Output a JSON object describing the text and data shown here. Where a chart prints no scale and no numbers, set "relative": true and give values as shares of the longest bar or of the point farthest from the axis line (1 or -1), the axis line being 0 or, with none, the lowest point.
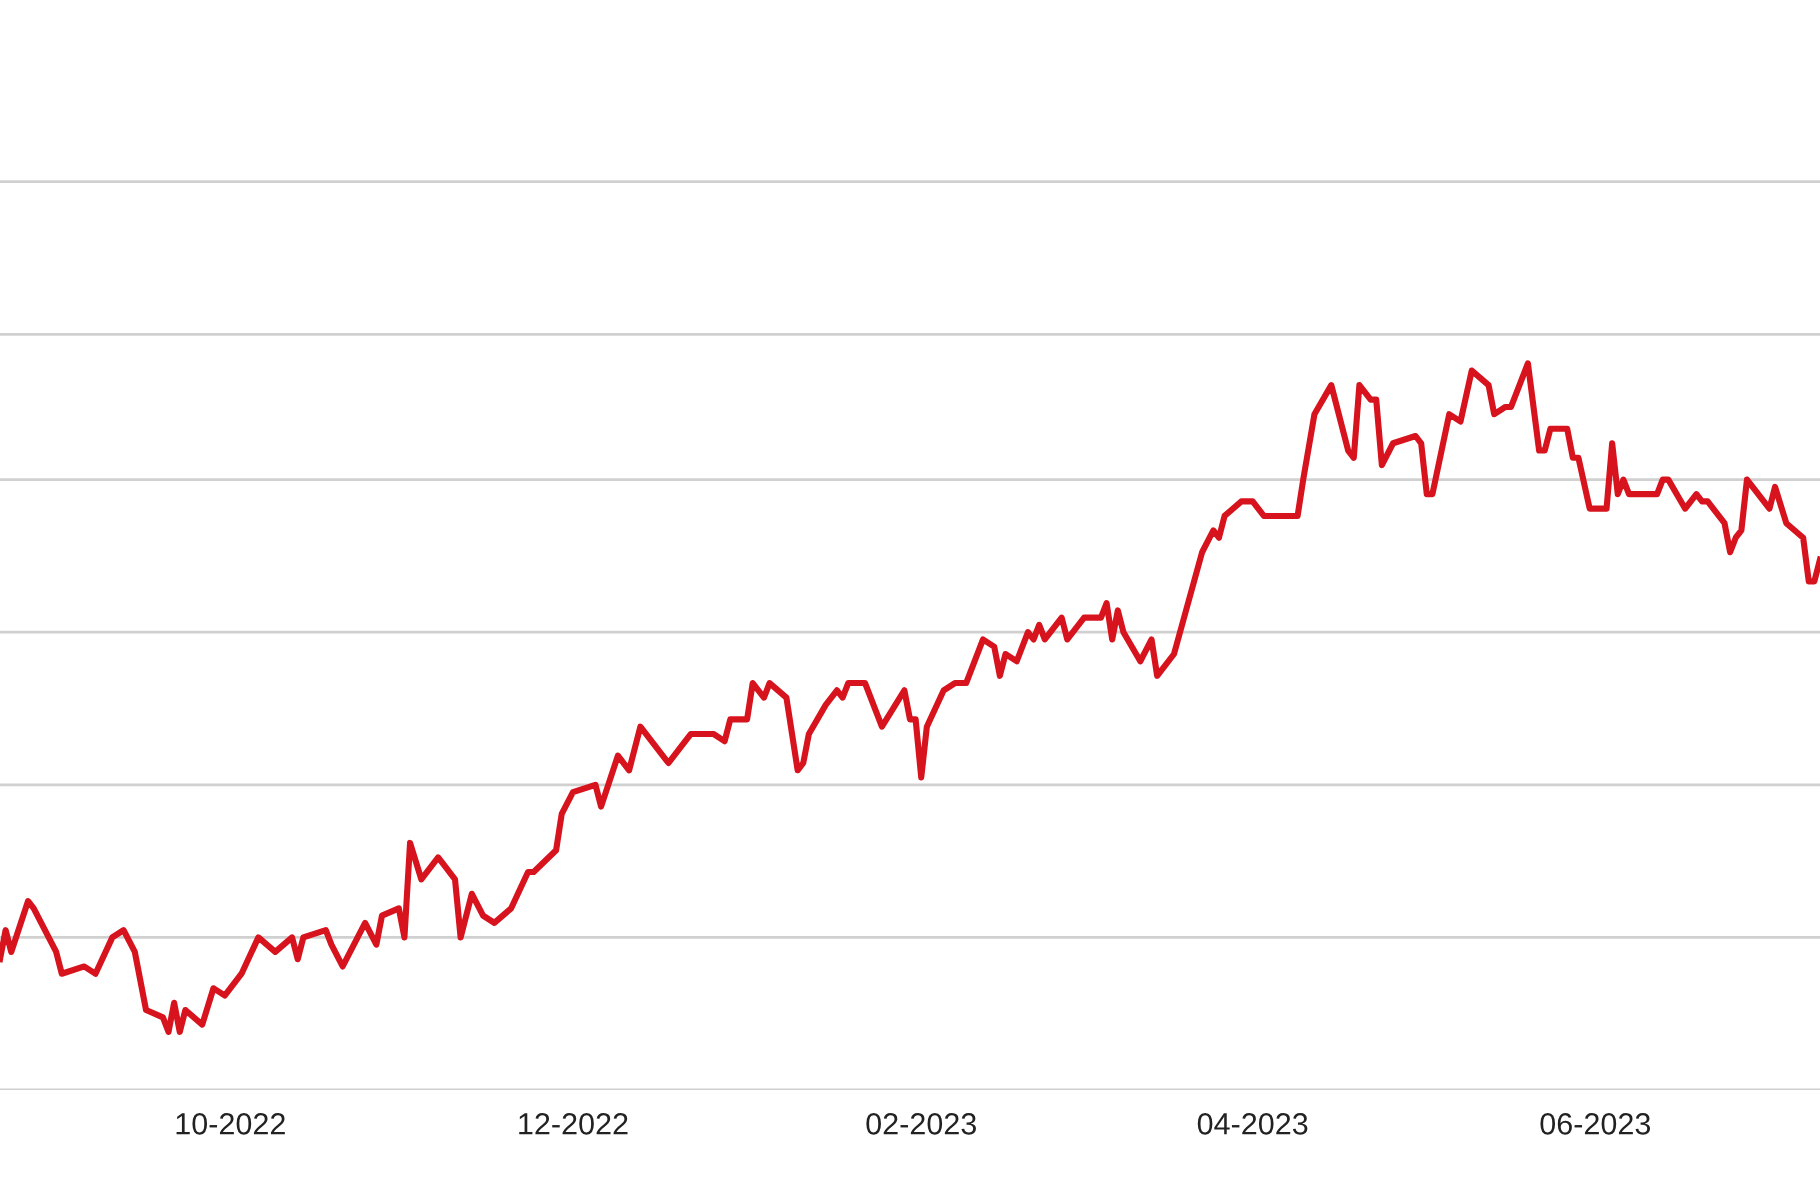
{
  "chart_data": {
    "type": "line",
    "relative": true,
    "legend": false,
    "marker": "none",
    "line_style": "solid",
    "ref_lines": [
      {
        "axis": "y",
        "value": 0,
        "color": "#d0d0d0"
      },
      {
        "axis": "y",
        "value": 0.21,
        "color": "#d0d0d0"
      },
      {
        "axis": "y",
        "value": 0.42,
        "color": "#d0d0d0"
      },
      {
        "axis": "y",
        "value": 0.63,
        "color": "#d0d0d0"
      },
      {
        "axis": "y",
        "value": 0.84,
        "color": "#d0d0d0"
      },
      {
        "axis": "y",
        "value": 1.04,
        "color": "#d0d0d0"
      },
      {
        "axis": "y",
        "value": 1.25,
        "color": "#d0d0d0"
      }
    ],
    "xlim": [
      "2022-08-21",
      "2023-07-11"
    ],
    "xticks": [
      {
        "value": "2022-10-01",
        "label": "10-2022"
      },
      {
        "value": "2022-12-01",
        "label": "12-2022"
      },
      {
        "value": "2023-02-01",
        "label": "02-2023"
      },
      {
        "value": "2023-04-01",
        "label": "04-2023"
      },
      {
        "value": "2023-06-01",
        "label": "06-2023"
      }
    ],
    "tick_labels": "x",
    "series": [
      {
        "color": "#d7141e",
        "x": [
          "2022-08-21",
          "2022-08-22",
          "2022-08-23",
          "2022-08-26",
          "2022-08-27",
          "2022-08-29",
          "2022-08-31",
          "2022-09-01",
          "2022-09-05",
          "2022-09-07",
          "2022-09-10",
          "2022-09-12",
          "2022-09-14",
          "2022-09-16",
          "2022-09-19",
          "2022-09-20",
          "2022-09-21",
          "2022-09-22",
          "2022-09-23",
          "2022-09-26",
          "2022-09-28",
          "2022-09-30",
          "2022-10-03",
          "2022-10-06",
          "2022-10-09",
          "2022-10-12",
          "2022-10-13",
          "2022-10-14",
          "2022-10-18",
          "2022-10-19",
          "2022-10-21",
          "2022-10-25",
          "2022-10-27",
          "2022-10-28",
          "2022-10-31",
          "2022-11-01",
          "2022-11-02",
          "2022-11-04",
          "2022-11-07",
          "2022-11-08",
          "2022-11-10",
          "2022-11-11",
          "2022-11-13",
          "2022-11-15",
          "2022-11-17",
          "2022-11-20",
          "2022-11-23",
          "2022-11-24",
          "2022-11-28",
          "2022-11-29",
          "2022-12-01",
          "2022-12-05",
          "2022-12-06",
          "2022-12-09",
          "2022-12-11",
          "2022-12-13",
          "2022-12-18",
          "2022-12-20",
          "2022-12-22",
          "2022-12-26",
          "2022-12-28",
          "2022-12-29",
          "2023-01-01",
          "2023-01-02",
          "2023-01-04",
          "2023-01-05",
          "2023-01-08",
          "2023-01-10",
          "2023-01-11",
          "2023-01-12",
          "2023-01-15",
          "2023-01-17",
          "2023-01-18",
          "2023-01-19",
          "2023-01-22",
          "2023-01-25",
          "2023-01-29",
          "2023-01-30",
          "2023-01-31",
          "2023-02-01",
          "2023-02-02",
          "2023-02-05",
          "2023-02-07",
          "2023-02-08",
          "2023-02-09",
          "2023-02-12",
          "2023-02-14",
          "2023-02-15",
          "2023-02-16",
          "2023-02-18",
          "2023-02-20",
          "2023-02-21",
          "2023-02-22",
          "2023-02-23",
          "2023-02-26",
          "2023-02-27",
          "2023-03-02",
          "2023-03-05",
          "2023-03-06",
          "2023-03-07",
          "2023-03-08",
          "2023-03-09",
          "2023-03-12",
          "2023-03-14",
          "2023-03-15",
          "2023-03-18",
          "2023-03-23",
          "2023-03-25",
          "2023-03-26",
          "2023-03-27",
          "2023-03-30",
          "2023-04-01",
          "2023-04-03",
          "2023-04-09",
          "2023-04-10",
          "2023-04-12",
          "2023-04-15",
          "2023-04-18",
          "2023-04-19",
          "2023-04-20",
          "2023-04-22",
          "2023-04-23",
          "2023-04-24",
          "2023-04-26",
          "2023-04-30",
          "2023-05-01",
          "2023-05-02",
          "2023-05-03",
          "2023-05-06",
          "2023-05-08",
          "2023-05-10",
          "2023-05-13",
          "2023-05-14",
          "2023-05-16",
          "2023-05-17",
          "2023-05-20",
          "2023-05-22",
          "2023-05-23",
          "2023-05-24",
          "2023-05-27",
          "2023-05-28",
          "2023-05-29",
          "2023-05-31",
          "2023-06-03",
          "2023-06-04",
          "2023-06-05",
          "2023-06-06",
          "2023-06-07",
          "2023-06-11",
          "2023-06-12",
          "2023-06-13",
          "2023-06-14",
          "2023-06-17",
          "2023-06-19",
          "2023-06-20",
          "2023-06-21",
          "2023-06-24",
          "2023-06-25",
          "2023-06-26",
          "2023-06-27",
          "2023-06-28",
          "2023-07-02",
          "2023-07-03",
          "2023-07-05",
          "2023-07-08",
          "2023-07-09",
          "2023-07-10",
          "2023-07-11"
        ],
        "values": [
          0.18,
          0.22,
          0.19,
          0.26,
          0.25,
          0.22,
          0.19,
          0.16,
          0.17,
          0.16,
          0.21,
          0.22,
          0.19,
          0.11,
          0.1,
          0.08,
          0.12,
          0.08,
          0.11,
          0.09,
          0.14,
          0.13,
          0.16,
          0.21,
          0.19,
          0.21,
          0.18,
          0.21,
          0.22,
          0.2,
          0.17,
          0.23,
          0.2,
          0.24,
          0.25,
          0.21,
          0.34,
          0.29,
          0.32,
          0.31,
          0.29,
          0.21,
          0.27,
          0.24,
          0.23,
          0.25,
          0.3,
          0.3,
          0.33,
          0.38,
          0.41,
          0.42,
          0.39,
          0.46,
          0.44,
          0.5,
          0.45,
          0.47,
          0.49,
          0.49,
          0.48,
          0.51,
          0.51,
          0.56,
          0.54,
          0.56,
          0.54,
          0.44,
          0.45,
          0.49,
          0.53,
          0.55,
          0.54,
          0.56,
          0.56,
          0.5,
          0.55,
          0.51,
          0.51,
          0.43,
          0.5,
          0.55,
          0.56,
          0.56,
          0.56,
          0.62,
          0.61,
          0.57,
          0.6,
          0.59,
          0.63,
          0.62,
          0.64,
          0.62,
          0.65,
          0.62,
          0.65,
          0.65,
          0.67,
          0.62,
          0.66,
          0.63,
          0.59,
          0.62,
          0.57,
          0.6,
          0.74,
          0.77,
          0.76,
          0.79,
          0.81,
          0.81,
          0.79,
          0.79,
          0.84,
          0.93,
          0.97,
          0.88,
          0.87,
          0.97,
          0.95,
          0.95,
          0.86,
          0.89,
          0.9,
          0.89,
          0.82,
          0.82,
          0.93,
          0.92,
          0.99,
          0.97,
          0.93,
          0.94,
          0.94,
          1.0,
          0.88,
          0.88,
          0.91,
          0.91,
          0.87,
          0.87,
          0.8,
          0.8,
          0.89,
          0.82,
          0.84,
          0.82,
          0.82,
          0.82,
          0.84,
          0.84,
          0.8,
          0.82,
          0.81,
          0.81,
          0.78,
          0.74,
          0.76,
          0.77,
          0.84,
          0.8,
          0.83,
          0.78,
          0.76,
          0.7,
          0.7,
          0.73
        ]
      }
    ]
  }
}
